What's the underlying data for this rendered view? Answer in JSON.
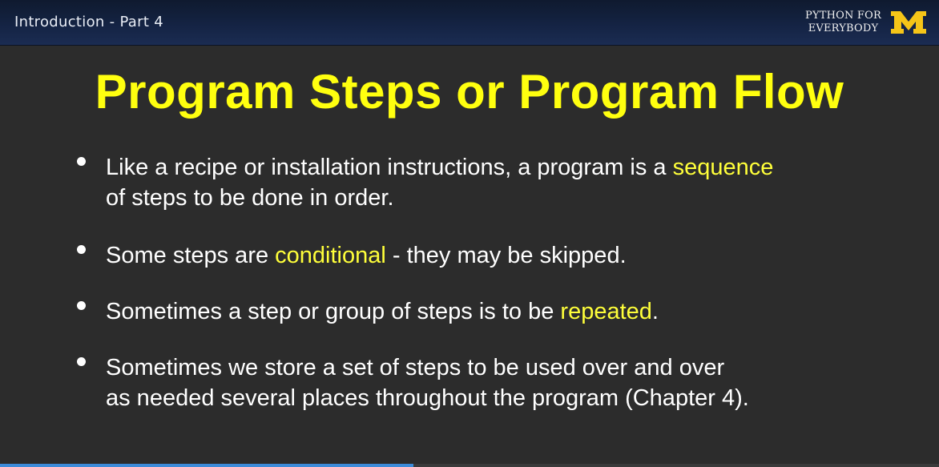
{
  "header": {
    "lesson_title": "Introduction - Part 4",
    "brand_line1": "PYTHON FOR",
    "brand_line2": "EVERYBODY",
    "logo_letter": "M",
    "logo_color": "#f5c518",
    "bar_color": "#142343"
  },
  "slide": {
    "title": "Program Steps or Program Flow",
    "title_color": "#ffff0f",
    "highlight_color": "#ffff3a",
    "bullets": [
      {
        "pre": "Like a recipe or installation instructions, a program is a ",
        "highlight": "sequence",
        "post_line": "of steps to be done in order."
      },
      {
        "pre": "Some steps are ",
        "highlight": "conditional",
        "post": " - they may be skipped."
      },
      {
        "pre": "Sometimes a step or group of steps is to be ",
        "highlight": "repeated",
        "post": "."
      },
      {
        "line1": "Sometimes we store a set of steps to be used over and over",
        "line2": "as needed several places throughout the program (Chapter 4)."
      }
    ]
  },
  "player": {
    "progress_fraction": 0.44,
    "progress_color": "#3c8bd9"
  }
}
